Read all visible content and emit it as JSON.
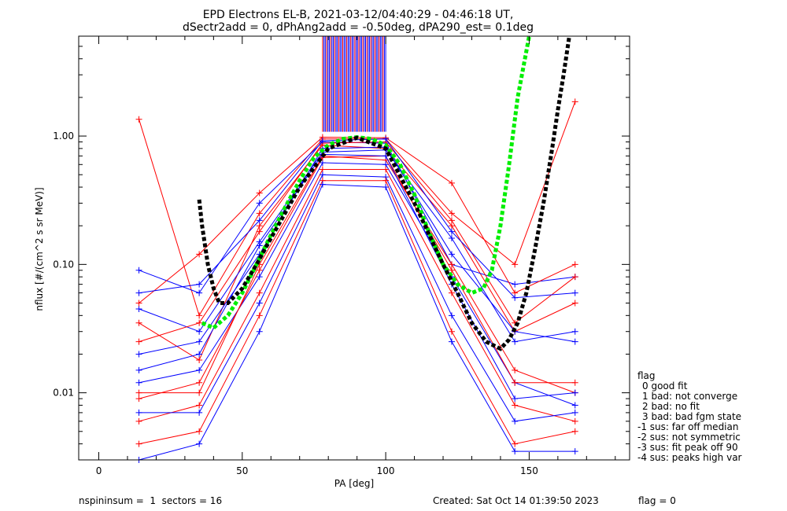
{
  "chart_data": {
    "type": "line",
    "title": "EPD Electrons EL-B, 2021-03-12/04:40:29 - 04:46:18 UT,",
    "subtitle": "dSectr2add = 0, dPhAng2add = -0.50deg, dPA290_est=   0.1deg",
    "xlabel": "PA [deg]",
    "ylabel": "nflux [#/(cm^2 s sr MeV)]",
    "xlim": [
      -7,
      185
    ],
    "ylim": [
      0.003,
      6.0
    ],
    "y_scale": "log",
    "x_ticks": [
      0,
      50,
      100,
      150
    ],
    "x_tick_labels": [
      "0",
      "50",
      "100",
      "150"
    ],
    "y_ticks": [
      0.01,
      0.1,
      1.0
    ],
    "y_tick_labels": [
      "0.01",
      "0.10",
      "1.00"
    ],
    "grid": false,
    "legend_position": "right-outside",
    "pa_bins": [
      14,
      35,
      56,
      78,
      100,
      123,
      145,
      166
    ],
    "series": [
      {
        "color": "#ff0000",
        "values": [
          0.035,
          0.018,
          0.2,
          0.85,
          0.8,
          0.2,
          0.03,
          0.05
        ]
      },
      {
        "color": "#0000ff",
        "values": [
          0.045,
          0.03,
          0.15,
          0.75,
          0.78,
          0.16,
          0.025,
          0.03
        ]
      },
      {
        "color": "#ff0000",
        "values": [
          1.35,
          0.04,
          0.25,
          0.95,
          0.95,
          0.25,
          0.1,
          1.85
        ]
      },
      {
        "color": "#0000ff",
        "values": [
          0.09,
          0.06,
          0.3,
          0.9,
          0.88,
          0.1,
          0.07,
          0.08
        ]
      },
      {
        "color": "#ff0000",
        "values": [
          0.01,
          0.01,
          0.1,
          0.7,
          0.65,
          0.1,
          0.015,
          0.01
        ]
      },
      {
        "color": "#0000ff",
        "values": [
          0.012,
          0.015,
          0.08,
          0.62,
          0.6,
          0.08,
          0.012,
          0.008
        ]
      },
      {
        "color": "#ff0000",
        "values": [
          0.006,
          0.008,
          0.06,
          0.55,
          0.55,
          0.06,
          0.008,
          0.006
        ]
      },
      {
        "color": "#0000ff",
        "values": [
          0.007,
          0.007,
          0.05,
          0.5,
          0.48,
          0.04,
          0.006,
          0.007
        ]
      },
      {
        "color": "#ff0000",
        "values": [
          0.05,
          0.12,
          0.36,
          0.98,
          0.97,
          0.43,
          0.06,
          0.1
        ]
      },
      {
        "color": "#0000ff",
        "values": [
          0.02,
          0.025,
          0.12,
          0.8,
          0.82,
          0.12,
          0.03,
          0.025
        ]
      },
      {
        "color": "#ff0000",
        "values": [
          0.004,
          0.005,
          0.04,
          0.45,
          0.45,
          0.03,
          0.004,
          0.005
        ]
      },
      {
        "color": "#0000ff",
        "values": [
          0.003,
          0.004,
          0.03,
          0.42,
          0.4,
          0.025,
          0.0035,
          0.0035
        ]
      },
      {
        "color": "#ff0000",
        "values": [
          0.025,
          0.035,
          0.18,
          0.88,
          0.9,
          0.22,
          0.035,
          0.08
        ]
      },
      {
        "color": "#0000ff",
        "values": [
          0.06,
          0.07,
          0.22,
          0.92,
          0.95,
          0.18,
          0.055,
          0.06
        ]
      },
      {
        "color": "#ff0000",
        "values": [
          0.009,
          0.012,
          0.09,
          0.68,
          0.7,
          0.09,
          0.012,
          0.012
        ]
      },
      {
        "color": "#0000ff",
        "values": [
          0.015,
          0.02,
          0.14,
          0.72,
          0.7,
          0.07,
          0.009,
          0.01
        ]
      }
    ],
    "fit_curves": [
      {
        "name": "green-fit",
        "color": "#00ee00",
        "x": [
          36,
          40,
          45,
          50,
          55,
          60,
          65,
          70,
          75,
          80,
          85,
          90,
          95,
          100,
          105,
          110,
          115,
          120,
          125,
          130,
          134,
          137,
          140,
          143,
          146,
          150
        ],
        "y": [
          0.035,
          0.032,
          0.04,
          0.06,
          0.1,
          0.17,
          0.28,
          0.45,
          0.68,
          0.85,
          0.95,
          0.98,
          0.95,
          0.85,
          0.6,
          0.35,
          0.18,
          0.1,
          0.07,
          0.06,
          0.065,
          0.09,
          0.2,
          0.6,
          2.0,
          6.0
        ]
      },
      {
        "name": "black-fit",
        "color": "#000000",
        "x": [
          35,
          36,
          38,
          40,
          42,
          45,
          50,
          55,
          60,
          70,
          80,
          90,
          100,
          110,
          120,
          125,
          130,
          135,
          140,
          143,
          146,
          149,
          152,
          155,
          158,
          160,
          162,
          164
        ],
        "y": [
          0.32,
          0.2,
          0.1,
          0.065,
          0.05,
          0.05,
          0.065,
          0.1,
          0.16,
          0.4,
          0.8,
          0.97,
          0.8,
          0.3,
          0.1,
          0.06,
          0.035,
          0.025,
          0.022,
          0.026,
          0.035,
          0.06,
          0.13,
          0.3,
          0.8,
          1.6,
          3.0,
          6.0
        ]
      }
    ],
    "legend": {
      "title": "flag",
      "entries": [
        "0 good fit",
        "1 bad: not converge",
        "2 bad: no fit",
        "3 bad: bad fgm state",
        "-1 sus: far off median",
        "-2 sus: not symmetric",
        "-3 sus: fit peak off 90",
        "-4 sus: peaks high var"
      ]
    }
  },
  "footer": {
    "left": "nspininsum =  1  sectors = 16",
    "middle": "Created: Sat Oct 14 01:39:50 2023",
    "right": "flag = 0"
  }
}
